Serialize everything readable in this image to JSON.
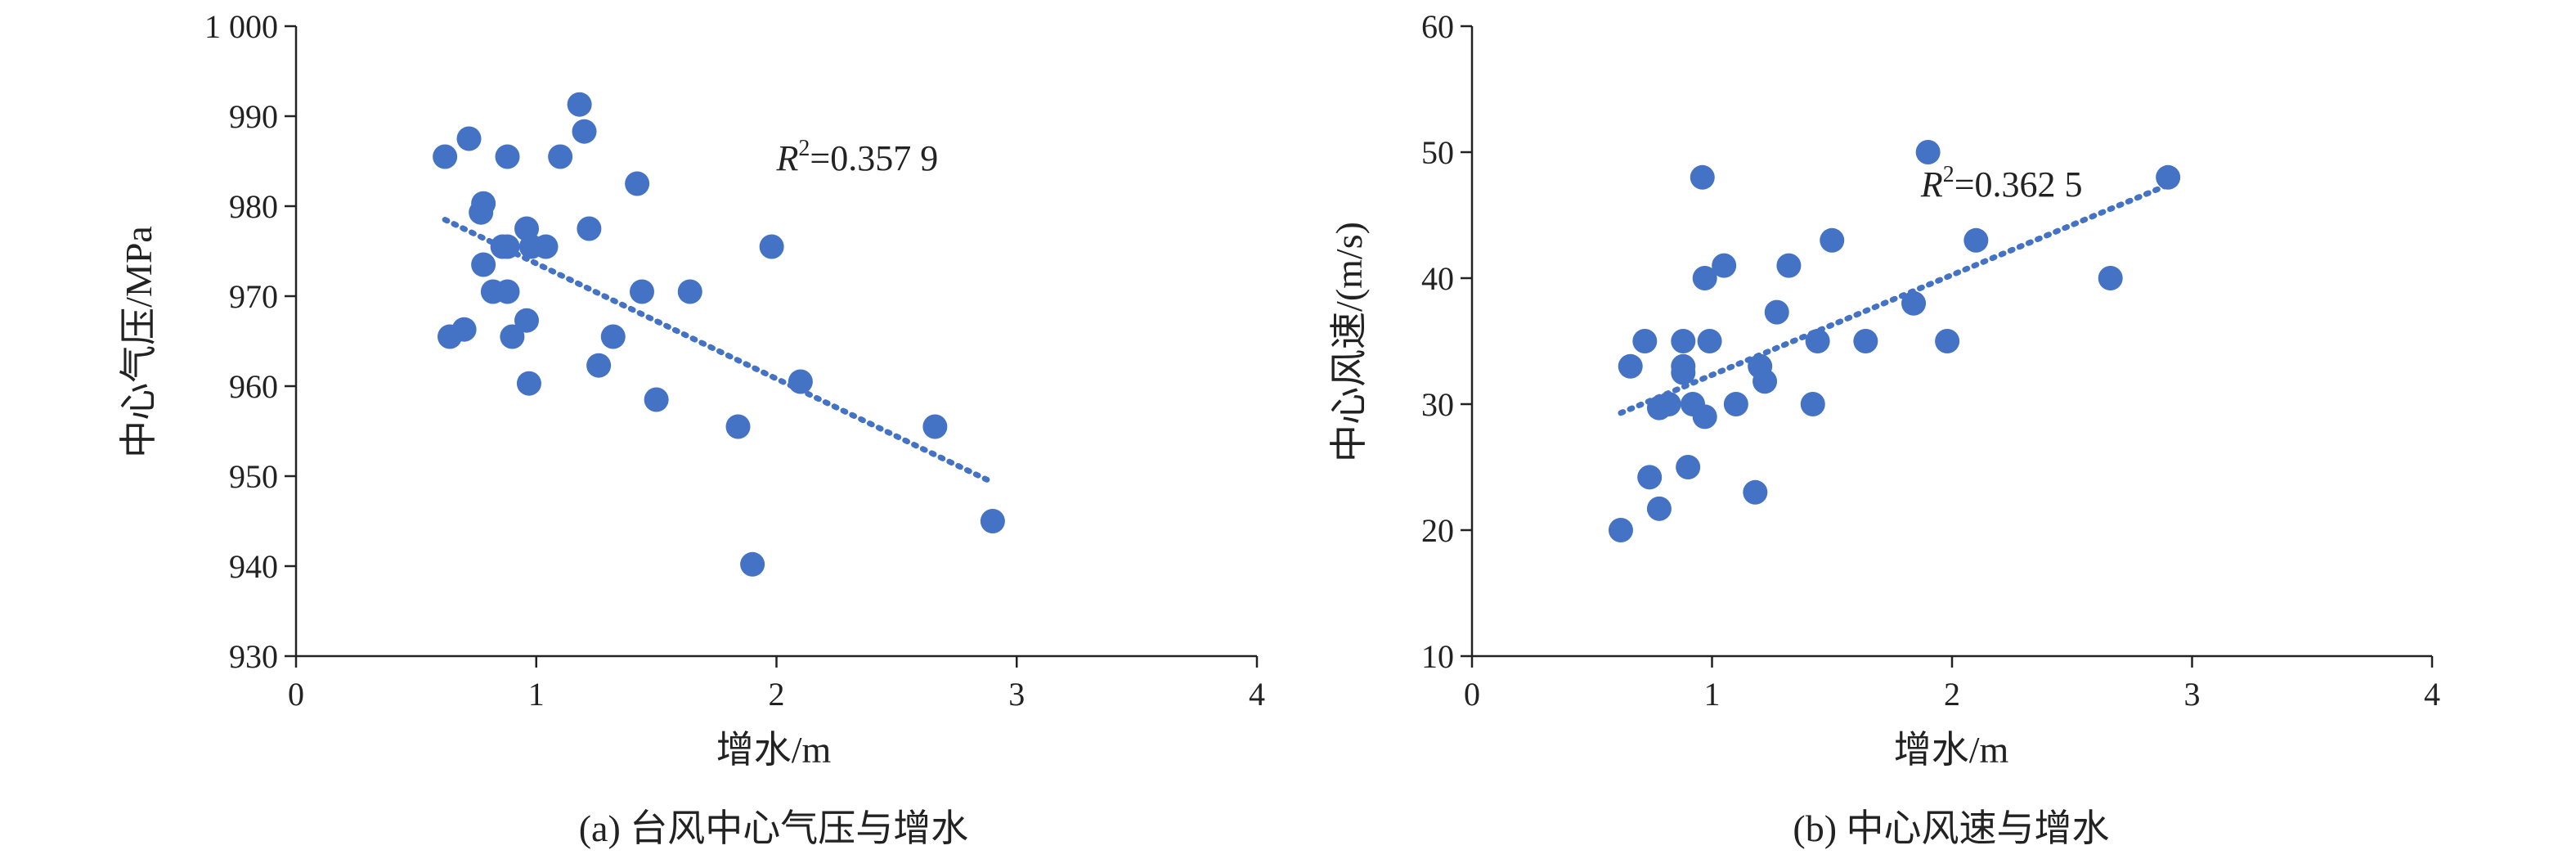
{
  "chart_data": [
    {
      "type": "scatter",
      "caption": "(a) 台风中心气压与增水",
      "xlabel": "增水/m",
      "ylabel": "中心气压/MPa",
      "xlim": [
        0,
        4
      ],
      "ylim": [
        930,
        1000
      ],
      "xticks": [
        0,
        1,
        2,
        3,
        4
      ],
      "yticks": [
        930,
        940,
        950,
        960,
        970,
        980,
        990,
        1000
      ],
      "xtick_labels": [
        "0",
        "1",
        "2",
        "3",
        "4"
      ],
      "ytick_labels": [
        "930",
        "940",
        "950",
        "960",
        "970",
        "980",
        "990",
        "1 000"
      ],
      "marker_color": "#4472c4",
      "trend_color": "#4472c4",
      "annotation": {
        "prefix": "R",
        "sup": "2",
        "suffix": "=0.357 9",
        "x": 2.0,
        "y": 984
      },
      "trendline": {
        "x": [
          0.62,
          2.9
        ],
        "y": [
          978.5,
          949.3
        ]
      },
      "points": [
        [
          0.62,
          985.5
        ],
        [
          0.72,
          987.5
        ],
        [
          0.78,
          980.3
        ],
        [
          0.77,
          979.3
        ],
        [
          0.88,
          985.5
        ],
        [
          0.96,
          977.5
        ],
        [
          0.86,
          975.5
        ],
        [
          0.88,
          975.5
        ],
        [
          0.98,
          975.5
        ],
        [
          1.04,
          975.5
        ],
        [
          1.1,
          985.5
        ],
        [
          1.18,
          991.3
        ],
        [
          1.2,
          988.3
        ],
        [
          1.22,
          977.5
        ],
        [
          1.42,
          982.5
        ],
        [
          0.78,
          973.5
        ],
        [
          0.82,
          970.5
        ],
        [
          0.88,
          970.5
        ],
        [
          0.64,
          965.5
        ],
        [
          0.7,
          966.3
        ],
        [
          0.9,
          965.5
        ],
        [
          0.96,
          967.3
        ],
        [
          0.97,
          960.3
        ],
        [
          1.26,
          962.3
        ],
        [
          1.32,
          965.5
        ],
        [
          1.44,
          970.5
        ],
        [
          1.64,
          970.5
        ],
        [
          1.5,
          958.5
        ],
        [
          1.98,
          975.5
        ],
        [
          2.1,
          960.5
        ],
        [
          1.84,
          955.5
        ],
        [
          1.9,
          940.2
        ],
        [
          2.66,
          955.5
        ],
        [
          2.9,
          945.0
        ]
      ]
    },
    {
      "type": "scatter",
      "caption": "(b) 中心风速与增水",
      "xlabel": "增水/m",
      "ylabel": "中心风速/(m/s)",
      "xlim": [
        0,
        4
      ],
      "ylim": [
        10,
        60
      ],
      "xticks": [
        0,
        1,
        2,
        3,
        4
      ],
      "yticks": [
        10,
        20,
        30,
        40,
        50,
        60
      ],
      "xtick_labels": [
        "0",
        "1",
        "2",
        "3",
        "4"
      ],
      "ytick_labels": [
        "10",
        "20",
        "30",
        "40",
        "50",
        "60"
      ],
      "marker_color": "#4472c4",
      "trend_color": "#4472c4",
      "annotation": {
        "prefix": "R",
        "sup": "2",
        "suffix": "=0.362 5",
        "x": 1.87,
        "y": 46.5
      },
      "trendline": {
        "x": [
          0.62,
          2.9
        ],
        "y": [
          29.3,
          47.4
        ]
      },
      "points": [
        [
          0.62,
          20.0
        ],
        [
          0.74,
          24.2
        ],
        [
          0.78,
          21.7
        ],
        [
          0.66,
          33.0
        ],
        [
          0.72,
          35.0
        ],
        [
          0.78,
          29.7
        ],
        [
          0.82,
          30.0
        ],
        [
          0.88,
          32.5
        ],
        [
          0.88,
          33.0
        ],
        [
          0.88,
          35.0
        ],
        [
          0.9,
          25.0
        ],
        [
          0.92,
          30.0
        ],
        [
          0.97,
          29.0
        ],
        [
          0.99,
          35.0
        ],
        [
          0.97,
          40.0
        ],
        [
          0.96,
          48.0
        ],
        [
          1.05,
          41.0
        ],
        [
          1.1,
          30.0
        ],
        [
          1.18,
          23.0
        ],
        [
          1.2,
          33.0
        ],
        [
          1.22,
          31.8
        ],
        [
          1.27,
          37.3
        ],
        [
          1.32,
          41.0
        ],
        [
          1.42,
          30.0
        ],
        [
          1.44,
          35.0
        ],
        [
          1.5,
          43.0
        ],
        [
          1.64,
          35.0
        ],
        [
          1.84,
          38.0
        ],
        [
          1.9,
          50.0
        ],
        [
          1.98,
          35.0
        ],
        [
          2.1,
          43.0
        ],
        [
          2.66,
          40.0
        ],
        [
          2.9,
          48.0
        ]
      ]
    }
  ]
}
